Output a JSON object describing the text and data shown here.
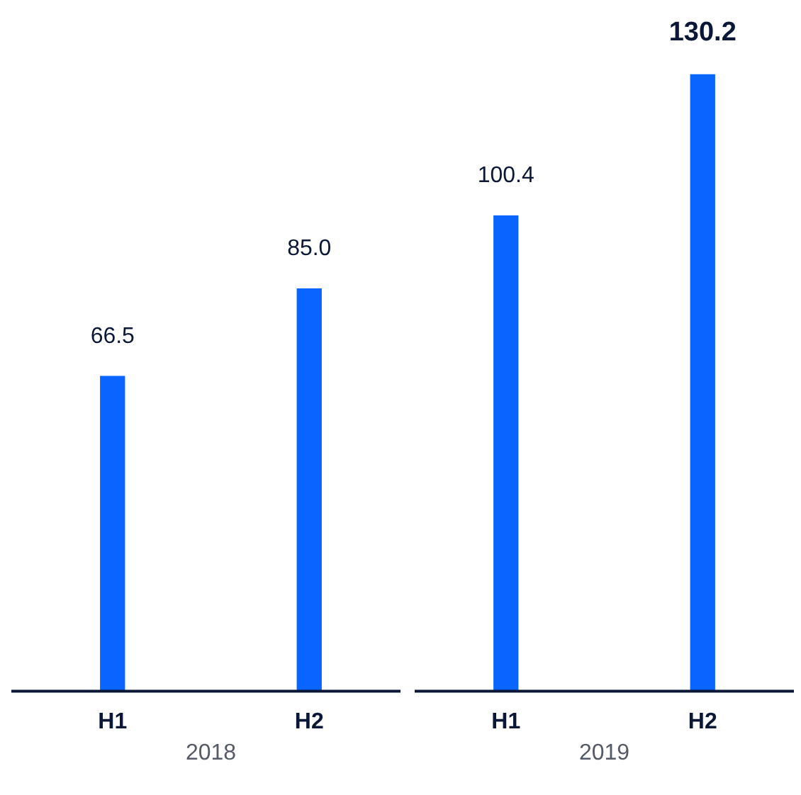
{
  "chart_data": {
    "type": "bar",
    "categories": [
      "H1",
      "H2",
      "H1",
      "H2"
    ],
    "values": [
      66.5,
      85.0,
      100.4,
      130.2
    ],
    "value_labels": [
      "66.5",
      "85.0",
      "100.4",
      "130.2"
    ],
    "color": "#0a64ff",
    "tick_labels": "x",
    "grid": false,
    "legend": false,
    "annotations": [
      "2018",
      "2019"
    ]
  }
}
